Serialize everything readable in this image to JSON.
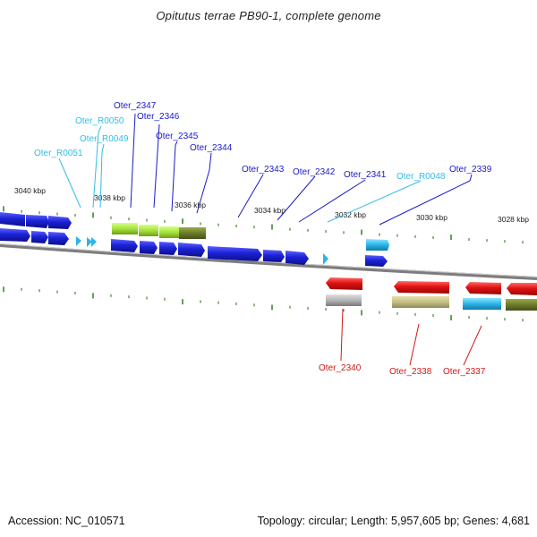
{
  "title": "Opitutus terrae PB90-1, complete genome",
  "footer": {
    "accession": "Accession: NC_010571",
    "summary": "Topology: circular; Length: 5,957,605 bp; Genes: 4,681"
  },
  "colors": {
    "forward_gene": "#1d23d6",
    "reverse_gene": "#e01212",
    "rna": "#29b5e8",
    "feature_lightgreen": "#a6e23c",
    "feature_olive": "#6b7a2a",
    "feature_khaki": "#c5bf84",
    "feature_grey": "#b4b4b4",
    "backbone": "#8c8c8c",
    "tick": "#3a8a2a",
    "label_dark": "#1a1ac8",
    "label_light": "#33bde3",
    "label_red": "#d01818"
  },
  "scale_labels": [
    "3040 kbp",
    "3038 kbp",
    "3036 kbp",
    "3034 kbp",
    "3032 kbp",
    "3030 kbp",
    "3028 kbp"
  ],
  "gene_labels": [
    {
      "text": "Oter_2347",
      "tone": "dark"
    },
    {
      "text": "Oter_R0050",
      "tone": "light"
    },
    {
      "text": "Oter_2346",
      "tone": "dark"
    },
    {
      "text": "Oter_R0049",
      "tone": "light"
    },
    {
      "text": "Oter_2345",
      "tone": "dark"
    },
    {
      "text": "Oter_R0051",
      "tone": "light"
    },
    {
      "text": "Oter_2344",
      "tone": "dark"
    },
    {
      "text": "Oter_2343",
      "tone": "dark"
    },
    {
      "text": "Oter_2342",
      "tone": "dark"
    },
    {
      "text": "Oter_2341",
      "tone": "dark"
    },
    {
      "text": "Oter_R0048",
      "tone": "light"
    },
    {
      "text": "Oter_2339",
      "tone": "dark"
    },
    {
      "text": "Oter_2340",
      "tone": "red"
    },
    {
      "text": "Oter_2338",
      "tone": "red"
    },
    {
      "text": "Oter_2337",
      "tone": "red"
    }
  ]
}
